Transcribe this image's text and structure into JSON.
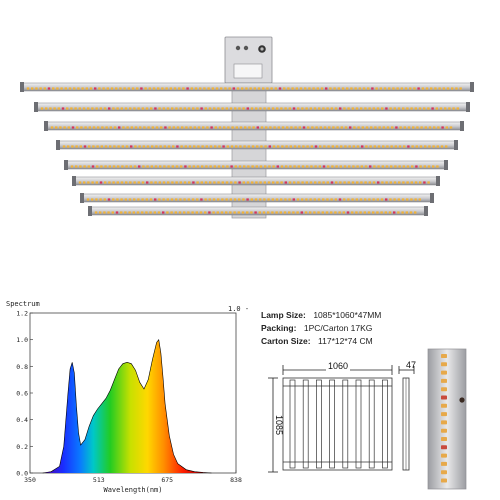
{
  "specs": {
    "lamp_size_label": "Lamp Size:",
    "lamp_size_value": "1085*1060*47MM",
    "packing_label": "Packing:",
    "packing_value": "1PC/Carton 17KG",
    "carton_label": "Carton Size:",
    "carton_value": "117*12*74 CM"
  },
  "dimensions": {
    "width_label": "1060",
    "height_label": "1085",
    "depth_label": "47"
  },
  "chart_data": {
    "type": "area",
    "title": "Spectrum",
    "xlabel": "Wavelength(nm)",
    "ylabel": "",
    "corner_label": "1.0 -",
    "xlim": [
      350,
      838
    ],
    "ylim": [
      0,
      1.2
    ],
    "x_ticks": [
      "350",
      "513",
      "675",
      "838"
    ],
    "y_ticks": [
      "0.0",
      "0.2",
      "0.4",
      "0.6",
      "0.8",
      "1.0",
      "1.2"
    ],
    "x": [
      380,
      400,
      420,
      430,
      440,
      445,
      450,
      455,
      460,
      465,
      470,
      480,
      490,
      500,
      510,
      520,
      530,
      540,
      550,
      560,
      570,
      580,
      590,
      600,
      610,
      620,
      630,
      640,
      650,
      655,
      660,
      665,
      670,
      680,
      690,
      700,
      720,
      740,
      760,
      780
    ],
    "values": [
      0.0,
      0.01,
      0.05,
      0.2,
      0.6,
      0.78,
      0.83,
      0.75,
      0.5,
      0.3,
      0.21,
      0.25,
      0.35,
      0.43,
      0.48,
      0.52,
      0.56,
      0.62,
      0.7,
      0.78,
      0.82,
      0.83,
      0.82,
      0.77,
      0.68,
      0.63,
      0.7,
      0.85,
      0.98,
      1.0,
      0.9,
      0.72,
      0.52,
      0.28,
      0.14,
      0.07,
      0.025,
      0.01,
      0.004,
      0.0
    ],
    "grid": false,
    "legend": "none"
  }
}
